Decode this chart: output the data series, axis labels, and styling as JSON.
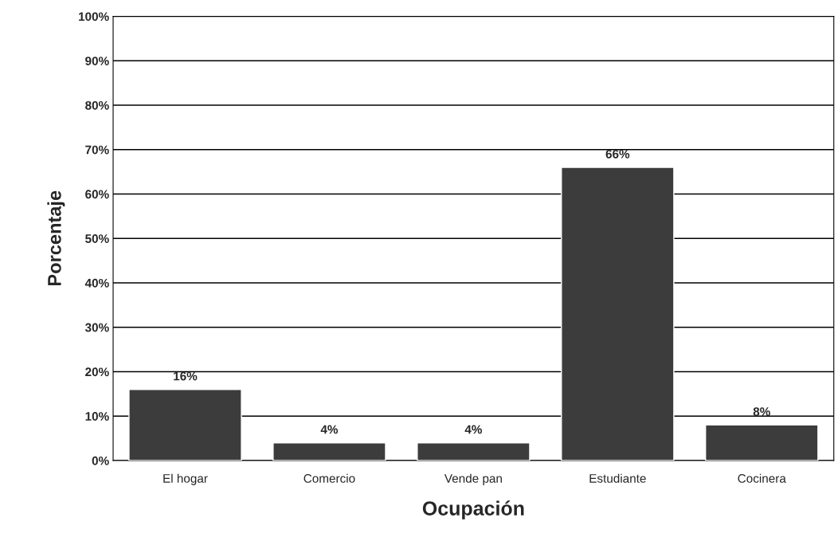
{
  "chart_data": {
    "type": "bar",
    "xlabel": "Ocupación",
    "ylabel": "Porcentaje",
    "categories": [
      "El hogar",
      "Comercio",
      "Vende pan",
      "Estudiante",
      "Cocinera"
    ],
    "values": [
      16,
      4,
      4,
      66,
      8
    ],
    "value_labels": [
      "16%",
      "4%",
      "4%",
      "66%",
      "8%"
    ],
    "color": "#3c3c3c",
    "ylim": [
      0,
      100
    ],
    "yticks": [
      {
        "value": 0,
        "label": "0%"
      },
      {
        "value": 10,
        "label": "10%"
      },
      {
        "value": 20,
        "label": "20%"
      },
      {
        "value": 30,
        "label": "30%"
      },
      {
        "value": 40,
        "label": "40%"
      },
      {
        "value": 50,
        "label": "50%"
      },
      {
        "value": 60,
        "label": "60%"
      },
      {
        "value": 70,
        "label": "70%"
      },
      {
        "value": 80,
        "label": "80%"
      },
      {
        "value": 90,
        "label": "90%"
      },
      {
        "value": 100,
        "label": "100%"
      }
    ],
    "grid": "y"
  }
}
